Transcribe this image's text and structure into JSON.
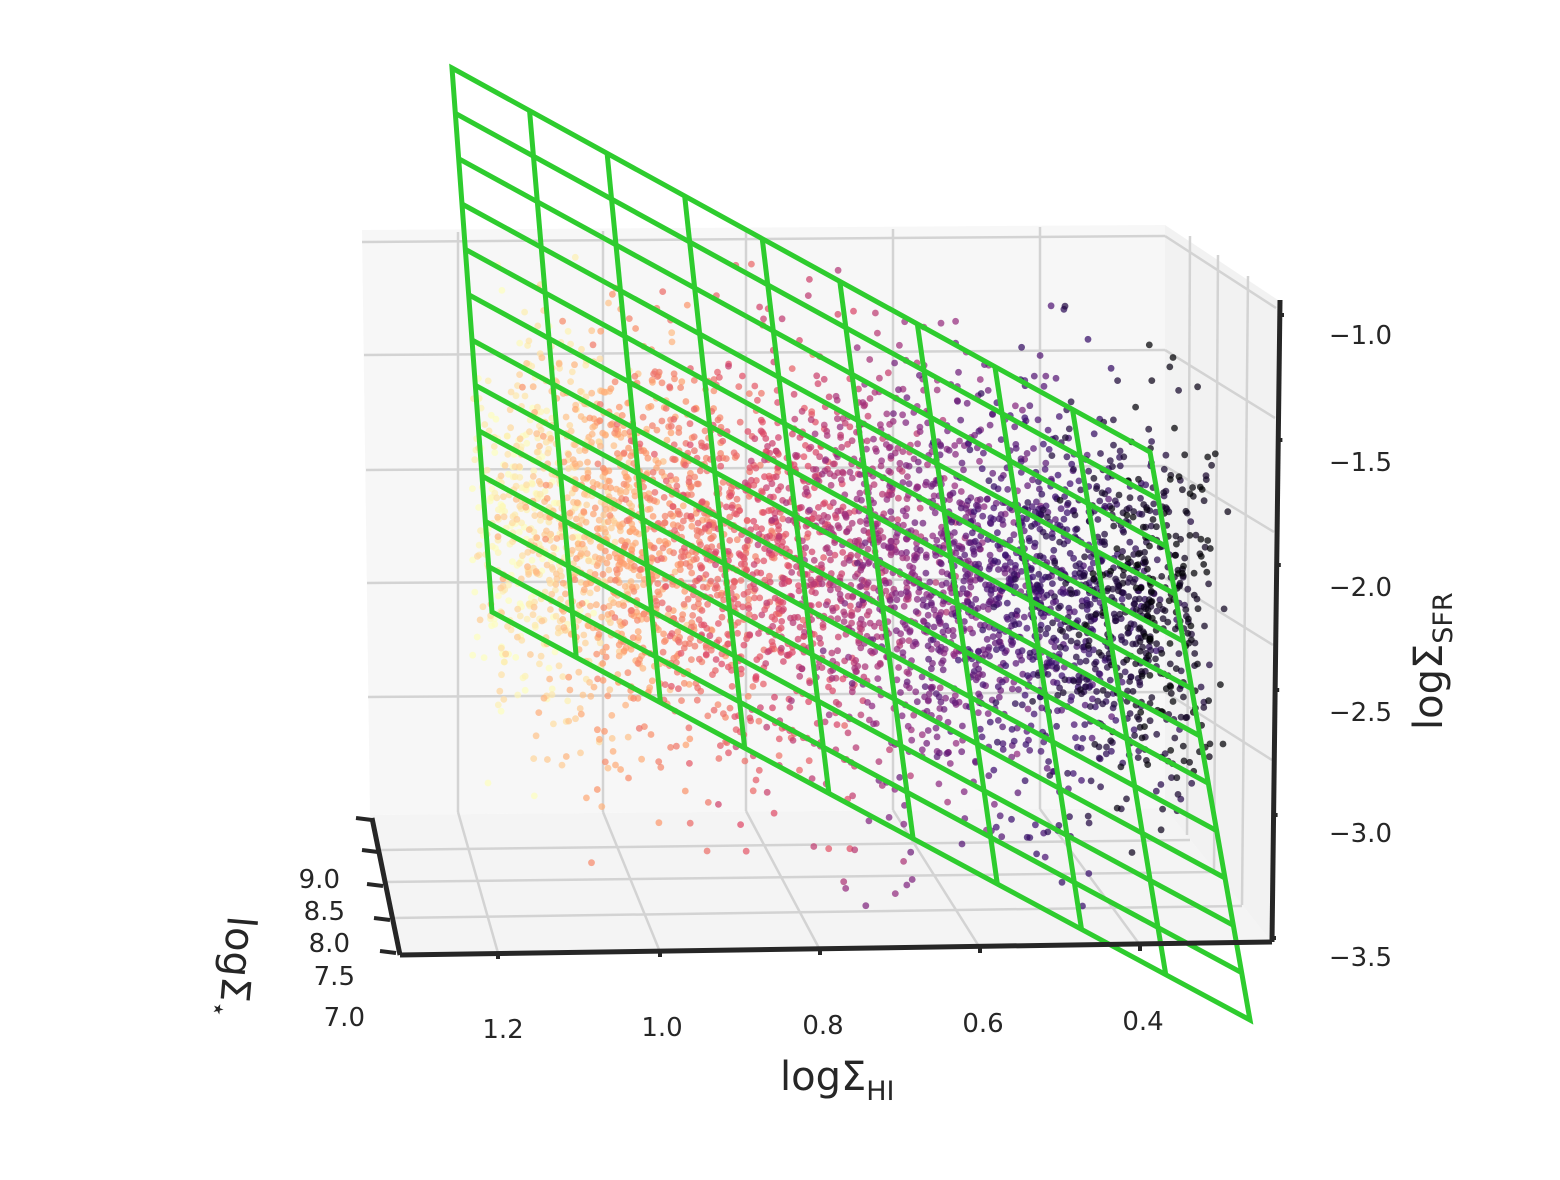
{
  "chart_data": {
    "type": "scatter",
    "projection": "3d",
    "x_axis": {
      "label_main": "logΣ",
      "label_sub": "HI",
      "ticks": [
        "1.2",
        "1.0",
        "0.8",
        "0.6",
        "0.4"
      ]
    },
    "y_axis": {
      "label_main": "logΣ",
      "label_sub": "⋆",
      "ticks": [
        "9.0",
        "8.5",
        "8.0",
        "7.5",
        "7.0"
      ]
    },
    "z_axis": {
      "label_main": "logΣ",
      "label_sub": "SFR",
      "ticks": [
        "−1.0",
        "−1.5",
        "−2.0",
        "−2.5",
        "−3.0",
        "−3.5"
      ]
    },
    "x_range": [
      0.3,
      1.3
    ],
    "y_range": [
      7.0,
      9.2
    ],
    "z_range": [
      -3.5,
      -0.9
    ],
    "grid": true,
    "colormap": "magma",
    "colormap_stops": [
      "#000004",
      "#3b0f70",
      "#8c2981",
      "#de4968",
      "#fe9f6d",
      "#fcfdbf"
    ],
    "point_color": "point color encodes logΣHI (high = light, low = dark)",
    "point_count_approx": 6000,
    "fit_plane": {
      "color": "#2ecc2e",
      "grid_lines_x": 9,
      "grid_lines_y": 12
    }
  }
}
